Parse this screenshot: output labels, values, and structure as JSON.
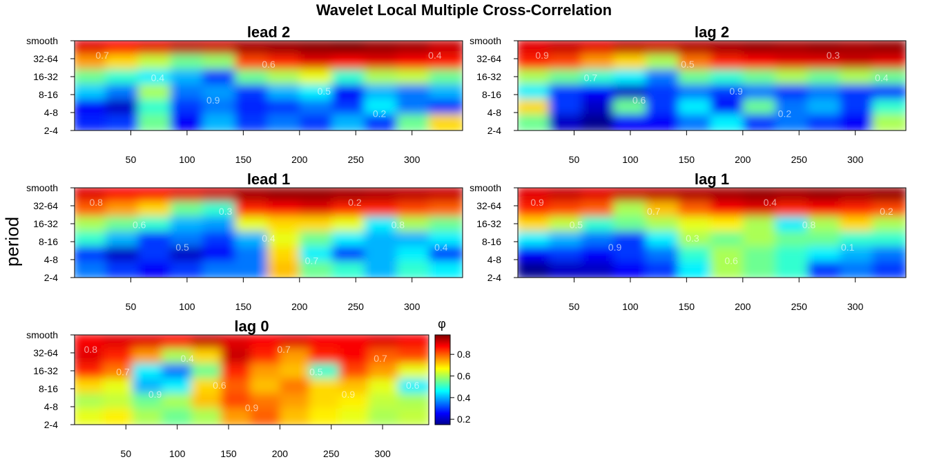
{
  "figure": {
    "title": "Wavelet Local Multiple Cross-Correlation",
    "ylabel": "period"
  },
  "colorbar": {
    "label": "φ",
    "ticks": [
      0.2,
      0.4,
      0.6,
      0.8
    ],
    "range": [
      0.15,
      0.98
    ],
    "colormap": [
      "#00008f",
      "#0000ff",
      "#0080ff",
      "#00ffff",
      "#80ff80",
      "#ffff00",
      "#ff8000",
      "#ff0000",
      "#800000"
    ]
  },
  "chart_data": [
    {
      "type": "heatmap",
      "title": "lead 2",
      "x_ticks": [
        50,
        100,
        150,
        200,
        250,
        300
      ],
      "xlim": [
        0,
        345
      ],
      "y_ticks": [
        "2-4",
        "4-8",
        "8-16",
        "16-32",
        "32-64",
        "smooth"
      ],
      "contour_labels": [
        "0.7",
        "0.4",
        "0.9",
        "0.6",
        "0.5",
        "0.2",
        "0.4"
      ],
      "values": [
        [
          0.9,
          0.88,
          0.9,
          0.93,
          0.92,
          0.95,
          0.96,
          0.97,
          0.98,
          0.96,
          0.95,
          0.92
        ],
        [
          0.75,
          0.7,
          0.62,
          0.55,
          0.58,
          0.82,
          0.85,
          0.9,
          0.88,
          0.9,
          0.88,
          0.86
        ],
        [
          0.55,
          0.5,
          0.45,
          0.4,
          0.3,
          0.55,
          0.6,
          0.65,
          0.5,
          0.6,
          0.62,
          0.55
        ],
        [
          0.42,
          0.35,
          0.6,
          0.35,
          0.38,
          0.3,
          0.4,
          0.45,
          0.25,
          0.4,
          0.35,
          0.4
        ],
        [
          0.25,
          0.2,
          0.5,
          0.3,
          0.35,
          0.28,
          0.3,
          0.35,
          0.3,
          0.45,
          0.35,
          0.3
        ],
        [
          0.28,
          0.3,
          0.55,
          0.25,
          0.4,
          0.3,
          0.35,
          0.3,
          0.4,
          0.3,
          0.55,
          0.7
        ]
      ]
    },
    {
      "type": "heatmap",
      "title": "lag 2",
      "x_ticks": [
        50,
        100,
        150,
        200,
        250,
        300
      ],
      "xlim": [
        0,
        345
      ],
      "y_ticks": [
        "2-4",
        "4-8",
        "8-16",
        "16-32",
        "32-64",
        "smooth"
      ],
      "contour_labels": [
        "0.9",
        "0.7",
        "0.6",
        "0.5",
        "0.9",
        "0.2",
        "0.3",
        "0.4"
      ],
      "values": [
        [
          0.9,
          0.92,
          0.9,
          0.93,
          0.92,
          0.94,
          0.95,
          0.96,
          0.95,
          0.96,
          0.95,
          0.96
        ],
        [
          0.85,
          0.82,
          0.75,
          0.7,
          0.6,
          0.78,
          0.85,
          0.88,
          0.9,
          0.9,
          0.92,
          0.9
        ],
        [
          0.6,
          0.55,
          0.5,
          0.45,
          0.35,
          0.55,
          0.5,
          0.55,
          0.6,
          0.55,
          0.6,
          0.55
        ],
        [
          0.45,
          0.3,
          0.25,
          0.2,
          0.3,
          0.35,
          0.3,
          0.35,
          0.3,
          0.35,
          0.3,
          0.3
        ],
        [
          0.7,
          0.3,
          0.2,
          0.55,
          0.3,
          0.45,
          0.25,
          0.55,
          0.35,
          0.4,
          0.3,
          0.5
        ],
        [
          0.55,
          0.2,
          0.15,
          0.25,
          0.25,
          0.35,
          0.45,
          0.3,
          0.35,
          0.3,
          0.25,
          0.6
        ]
      ]
    },
    {
      "type": "heatmap",
      "title": "lead 1",
      "x_ticks": [
        50,
        100,
        150,
        200,
        250,
        300
      ],
      "xlim": [
        0,
        345
      ],
      "y_ticks": [
        "2-4",
        "4-8",
        "8-16",
        "16-32",
        "32-64",
        "smooth"
      ],
      "contour_labels": [
        "0.8",
        "0.6",
        "0.5",
        "0.3",
        "0.4",
        "0.7",
        "0.2",
        "0.8",
        "0.4"
      ],
      "values": [
        [
          0.9,
          0.88,
          0.88,
          0.9,
          0.92,
          0.95,
          0.96,
          0.96,
          0.95,
          0.94,
          0.93,
          0.92
        ],
        [
          0.8,
          0.75,
          0.7,
          0.55,
          0.5,
          0.85,
          0.88,
          0.9,
          0.85,
          0.85,
          0.82,
          0.8
        ],
        [
          0.6,
          0.55,
          0.5,
          0.4,
          0.38,
          0.65,
          0.7,
          0.7,
          0.65,
          0.45,
          0.6,
          0.55
        ],
        [
          0.5,
          0.4,
          0.3,
          0.35,
          0.3,
          0.4,
          0.65,
          0.55,
          0.45,
          0.4,
          0.4,
          0.45
        ],
        [
          0.3,
          0.2,
          0.3,
          0.2,
          0.25,
          0.35,
          0.7,
          0.45,
          0.3,
          0.4,
          0.45,
          0.3
        ],
        [
          0.35,
          0.3,
          0.25,
          0.3,
          0.35,
          0.35,
          0.72,
          0.55,
          0.5,
          0.4,
          0.5,
          0.45
        ]
      ]
    },
    {
      "type": "heatmap",
      "title": "lag 1",
      "x_ticks": [
        50,
        100,
        150,
        200,
        250,
        300
      ],
      "xlim": [
        0,
        345
      ],
      "y_ticks": [
        "2-4",
        "4-8",
        "8-16",
        "16-32",
        "32-64",
        "smooth"
      ],
      "contour_labels": [
        "0.9",
        "0.5",
        "0.9",
        "0.7",
        "0.3",
        "0.6",
        "0.4",
        "0.8",
        "0.1",
        "0.2"
      ],
      "values": [
        [
          0.9,
          0.92,
          0.9,
          0.92,
          0.93,
          0.94,
          0.95,
          0.96,
          0.95,
          0.96,
          0.95,
          0.96
        ],
        [
          0.85,
          0.82,
          0.8,
          0.6,
          0.72,
          0.8,
          0.88,
          0.9,
          0.85,
          0.88,
          0.85,
          0.82
        ],
        [
          0.7,
          0.62,
          0.5,
          0.55,
          0.6,
          0.65,
          0.68,
          0.6,
          0.45,
          0.6,
          0.7,
          0.6
        ],
        [
          0.45,
          0.4,
          0.35,
          0.3,
          0.45,
          0.6,
          0.55,
          0.6,
          0.55,
          0.55,
          0.5,
          0.5
        ],
        [
          0.25,
          0.3,
          0.25,
          0.3,
          0.35,
          0.5,
          0.6,
          0.55,
          0.5,
          0.45,
          0.4,
          0.35
        ],
        [
          0.15,
          0.2,
          0.2,
          0.25,
          0.3,
          0.45,
          0.6,
          0.55,
          0.5,
          0.3,
          0.35,
          0.3
        ]
      ]
    },
    {
      "type": "heatmap",
      "title": "lag 0",
      "x_ticks": [
        50,
        100,
        150,
        200,
        250,
        300
      ],
      "xlim": [
        0,
        345
      ],
      "y_ticks": [
        "2-4",
        "4-8",
        "8-16",
        "16-32",
        "32-64",
        "smooth"
      ],
      "contour_labels": [
        "0.8",
        "0.7",
        "0.9",
        "0.4",
        "0.6",
        "0.9",
        "0.7",
        "0.5",
        "0.9",
        "0.7",
        "0.6"
      ],
      "values": [
        [
          0.88,
          0.9,
          0.9,
          0.88,
          0.92,
          0.9,
          0.88,
          0.9,
          0.88,
          0.88,
          0.9,
          0.88
        ],
        [
          0.9,
          0.85,
          0.75,
          0.6,
          0.7,
          0.92,
          0.85,
          0.75,
          0.85,
          0.88,
          0.8,
          0.82
        ],
        [
          0.85,
          0.78,
          0.45,
          0.35,
          0.55,
          0.85,
          0.75,
          0.72,
          0.5,
          0.82,
          0.75,
          0.65
        ],
        [
          0.7,
          0.65,
          0.4,
          0.45,
          0.7,
          0.8,
          0.72,
          0.78,
          0.7,
          0.72,
          0.65,
          0.45
        ],
        [
          0.6,
          0.62,
          0.55,
          0.6,
          0.72,
          0.82,
          0.78,
          0.75,
          0.7,
          0.68,
          0.62,
          0.6
        ],
        [
          0.65,
          0.68,
          0.6,
          0.55,
          0.6,
          0.75,
          0.8,
          0.72,
          0.68,
          0.65,
          0.6,
          0.62
        ]
      ]
    }
  ]
}
